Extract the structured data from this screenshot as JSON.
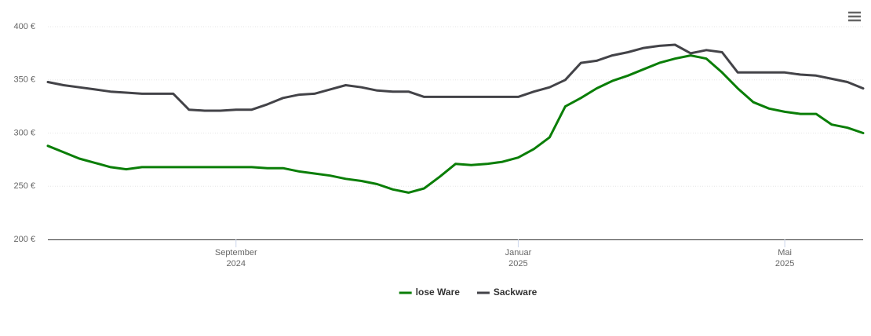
{
  "chart_data": {
    "type": "line",
    "categories": [
      null,
      null,
      null,
      null,
      null,
      null,
      null,
      null,
      null,
      null,
      null,
      null,
      "September 2024",
      null,
      null,
      null,
      null,
      null,
      null,
      null,
      null,
      null,
      null,
      null,
      null,
      null,
      null,
      null,
      null,
      null,
      "Januar 2025",
      null,
      null,
      null,
      null,
      null,
      null,
      null,
      null,
      null,
      null,
      null,
      null,
      null,
      null,
      null,
      null,
      "Mai 2025",
      null,
      null,
      null,
      null,
      null
    ],
    "series": [
      {
        "name": "lose Ware",
        "color": "#0a7e07",
        "values": [
          288,
          282,
          276,
          272,
          268,
          266,
          268,
          268,
          268,
          268,
          268,
          268,
          268,
          268,
          267,
          267,
          264,
          262,
          260,
          257,
          255,
          252,
          247,
          244,
          248,
          259,
          271,
          270,
          271,
          273,
          277,
          285,
          296,
          325,
          333,
          342,
          349,
          354,
          360,
          366,
          370,
          373,
          370,
          357,
          342,
          329,
          323,
          320,
          318,
          318,
          308,
          305,
          300
        ]
      },
      {
        "name": "Sackware",
        "color": "#434348",
        "values": [
          348,
          345,
          343,
          341,
          339,
          338,
          337,
          337,
          337,
          322,
          321,
          321,
          322,
          322,
          327,
          333,
          336,
          337,
          341,
          345,
          343,
          340,
          339,
          339,
          334,
          334,
          334,
          334,
          334,
          334,
          334,
          339,
          343,
          350,
          366,
          368,
          373,
          376,
          380,
          382,
          383,
          375,
          378,
          376,
          357,
          357,
          357,
          357,
          355,
          354,
          351,
          348,
          342
        ]
      }
    ],
    "ylim": [
      200,
      400
    ],
    "yticks": [
      {
        "value": 200,
        "label": "200 €"
      },
      {
        "value": 250,
        "label": "250 €"
      },
      {
        "value": 300,
        "label": "300 €"
      },
      {
        "value": 350,
        "label": "350 €"
      },
      {
        "value": 400,
        "label": "400 €"
      }
    ],
    "grid": true
  }
}
